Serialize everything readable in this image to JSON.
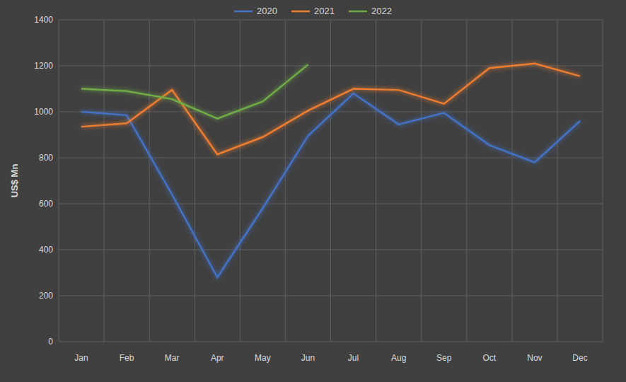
{
  "chart_data": {
    "type": "line",
    "y_label": "US$ Mn",
    "categories": [
      "Jan",
      "Feb",
      "Mar",
      "Apr",
      "May",
      "Jun",
      "Jul",
      "Aug",
      "Sep",
      "Oct",
      "Nov",
      "Dec"
    ],
    "series": [
      {
        "name": "2020",
        "color": "#4472c4",
        "values": [
          1000,
          985,
          640,
          280,
          580,
          895,
          1080,
          945,
          995,
          855,
          780,
          960
        ]
      },
      {
        "name": "2021",
        "color": "#ed7d31",
        "values": [
          935,
          950,
          1095,
          815,
          890,
          1005,
          1100,
          1095,
          1035,
          1190,
          1210,
          1155
        ]
      },
      {
        "name": "2022",
        "color": "#70ad47",
        "values": [
          1100,
          1090,
          1055,
          970,
          1045,
          1205,
          null,
          null,
          null,
          null,
          null,
          null
        ]
      }
    ],
    "ylim": [
      0,
      1400
    ],
    "yticks": [
      0,
      200,
      400,
      600,
      800,
      1000,
      1200,
      1400
    ],
    "grid": true,
    "legend": "top"
  }
}
